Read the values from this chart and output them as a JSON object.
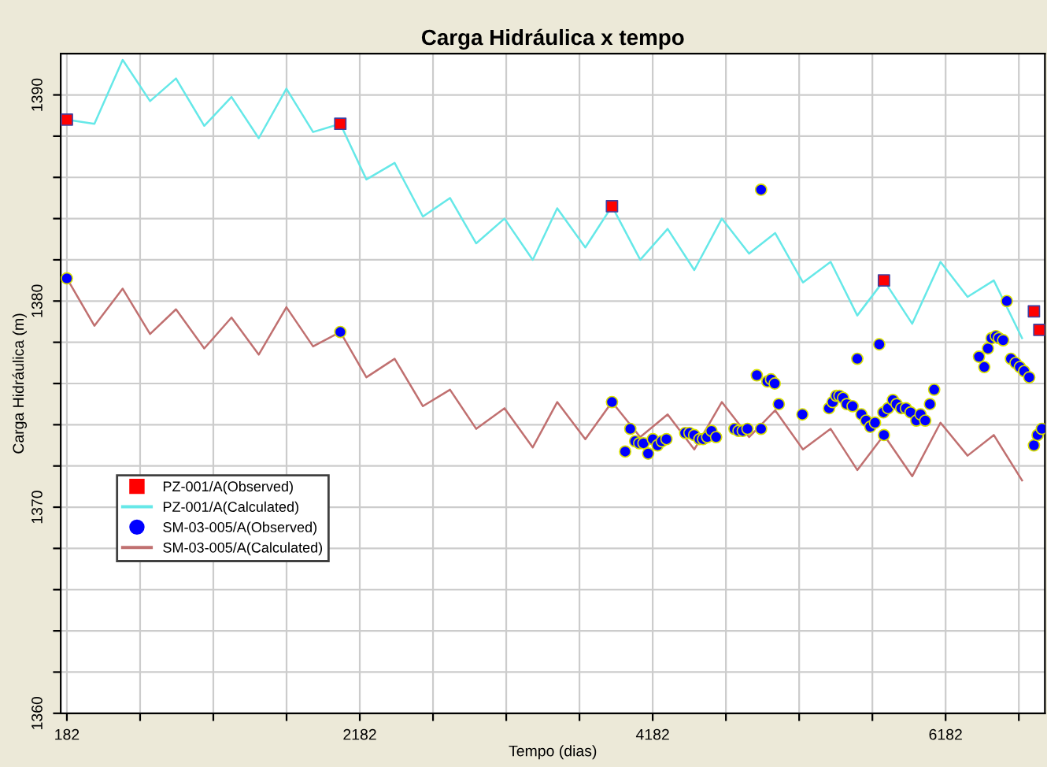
{
  "chart_data": {
    "type": "line",
    "title": "Carga Hidráulica x tempo",
    "xlabel": "Tempo (dias)",
    "ylabel": "Carga Hidráulica (m)",
    "xlim": [
      140,
      6860
    ],
    "ylim": [
      1360,
      1392
    ],
    "xticks": [
      182,
      {
        "value": 682,
        "label": null
      },
      {
        "value": 1182,
        "label": null
      },
      {
        "value": 1682,
        "label": null
      },
      2182,
      {
        "value": 2682,
        "label": null
      },
      {
        "value": 3182,
        "label": null
      },
      {
        "value": 3682,
        "label": null
      },
      4182,
      {
        "value": 4682,
        "label": null
      },
      {
        "value": 5182,
        "label": null
      },
      {
        "value": 5682,
        "label": null
      },
      6182,
      {
        "value": 6682,
        "label": null
      }
    ],
    "yticks": [
      1360,
      {
        "value": 1362,
        "label": null
      },
      {
        "value": 1364,
        "label": null
      },
      {
        "value": 1366,
        "label": null
      },
      {
        "value": 1368,
        "label": null
      },
      1370,
      {
        "value": 1372,
        "label": null
      },
      {
        "value": 1374,
        "label": null
      },
      {
        "value": 1376,
        "label": null
      },
      {
        "value": 1378,
        "label": null
      },
      1380,
      {
        "value": 1382,
        "label": null
      },
      {
        "value": 1384,
        "label": null
      },
      {
        "value": 1386,
        "label": null
      },
      {
        "value": 1388,
        "label": null
      },
      1390
    ],
    "grid": true,
    "legend": "lower left",
    "series": [
      {
        "name": "PZ-001/A(Observed)",
        "type": "scatter",
        "marker": "square",
        "color": "#ff0000",
        "x": [
          182,
          2049,
          3904,
          5761,
          6785,
          6822
        ],
        "values": [
          1388.8,
          1388.6,
          1384.6,
          1381.0,
          1379.5,
          1378.6
        ]
      },
      {
        "name": "PZ-001/A(Calculated)",
        "marker": "none",
        "color": "#66e8e8",
        "x": [
          182,
          370,
          563,
          750,
          927,
          1120,
          1306,
          1492,
          1681,
          1863,
          2049,
          2227,
          2420,
          2613,
          2798,
          2977,
          3170,
          3363,
          3530,
          3722,
          3904,
          4097,
          4284,
          4466,
          4654,
          4840,
          5018,
          5208,
          5397,
          5579,
          5761,
          5954,
          6147,
          6332,
          6511,
          6704
        ],
        "values": [
          1388.8,
          1388.6,
          1391.7,
          1389.7,
          1390.8,
          1388.5,
          1389.9,
          1387.9,
          1390.3,
          1388.2,
          1388.6,
          1385.9,
          1386.7,
          1384.1,
          1385.0,
          1382.8,
          1384.0,
          1382.0,
          1384.5,
          1382.6,
          1384.6,
          1382.0,
          1383.5,
          1381.5,
          1384.0,
          1382.3,
          1383.3,
          1380.9,
          1381.9,
          1379.3,
          1381.0,
          1378.9,
          1381.9,
          1380.2,
          1381.0,
          1378.2
        ]
      },
      {
        "name": "SM-03-005/A(Observed)",
        "type": "scatter",
        "marker": "circle",
        "color": "#0000ff",
        "x": [
          182,
          2049,
          3904,
          5761,
          3994,
          4029,
          4062,
          4090,
          4119,
          4151,
          4183,
          4215,
          4244,
          4276,
          4404,
          4433,
          4465,
          4501,
          4526,
          4554,
          4583,
          4615,
          4740,
          4768,
          4797,
          4829,
          4922,
          4893,
          4965,
          4990,
          5015,
          5043,
          5204,
          5386,
          5411,
          5436,
          5457,
          5482,
          5507,
          5547,
          5607,
          5639,
          5668,
          5700,
          5579,
          5729,
          5757,
          5789,
          5822,
          5847,
          5879,
          5911,
          5943,
          5982,
          6011,
          6043,
          6075,
          6104,
          6410,
          6446,
          6471,
          6496,
          6525,
          6546,
          6575,
          6600,
          6628,
          6660,
          6689,
          6718,
          6753,
          6785,
          6810,
          6839,
          4922
        ],
        "values": [
          1381.1,
          1378.5,
          1375.1,
          1373.5,
          1372.7,
          1373.8,
          1373.2,
          1373.1,
          1373.1,
          1372.6,
          1373.3,
          1373.0,
          1373.2,
          1373.3,
          1373.6,
          1373.6,
          1373.5,
          1373.3,
          1373.3,
          1373.4,
          1373.7,
          1373.4,
          1373.8,
          1373.7,
          1373.7,
          1373.8,
          1373.8,
          1376.4,
          1376.1,
          1376.2,
          1376.0,
          1375.0,
          1374.5,
          1374.8,
          1375.1,
          1375.4,
          1375.4,
          1375.3,
          1375.0,
          1374.9,
          1374.5,
          1374.2,
          1373.9,
          1374.1,
          1377.2,
          1377.9,
          1374.6,
          1374.8,
          1375.2,
          1375.0,
          1374.8,
          1374.8,
          1374.6,
          1374.2,
          1374.5,
          1374.2,
          1375.0,
          1375.7,
          1377.3,
          1376.8,
          1377.7,
          1378.2,
          1378.3,
          1378.2,
          1378.1,
          1380.0,
          1377.2,
          1377.0,
          1376.8,
          1376.6,
          1376.3,
          1373.0,
          1373.5,
          1373.8,
          1385.4
        ]
      },
      {
        "name": "SM-03-005/A(Calculated)",
        "marker": "none",
        "color": "#c07070",
        "x": [
          182,
          370,
          563,
          750,
          927,
          1120,
          1306,
          1492,
          1681,
          1863,
          2049,
          2227,
          2420,
          2613,
          2798,
          2977,
          3170,
          3363,
          3530,
          3722,
          3904,
          4097,
          4284,
          4466,
          4654,
          4840,
          5018,
          5208,
          5397,
          5579,
          5761,
          5954,
          6147,
          6332,
          6511,
          6704
        ],
        "values": [
          1381.1,
          1378.8,
          1380.6,
          1378.4,
          1379.6,
          1377.7,
          1379.2,
          1377.4,
          1379.7,
          1377.8,
          1378.5,
          1376.3,
          1377.2,
          1374.9,
          1375.7,
          1373.8,
          1374.8,
          1372.9,
          1375.1,
          1373.3,
          1375.1,
          1373.4,
          1374.5,
          1372.8,
          1375.1,
          1373.4,
          1374.7,
          1372.8,
          1373.8,
          1371.8,
          1373.5,
          1371.5,
          1374.1,
          1372.5,
          1373.5,
          1371.3
        ]
      }
    ]
  }
}
